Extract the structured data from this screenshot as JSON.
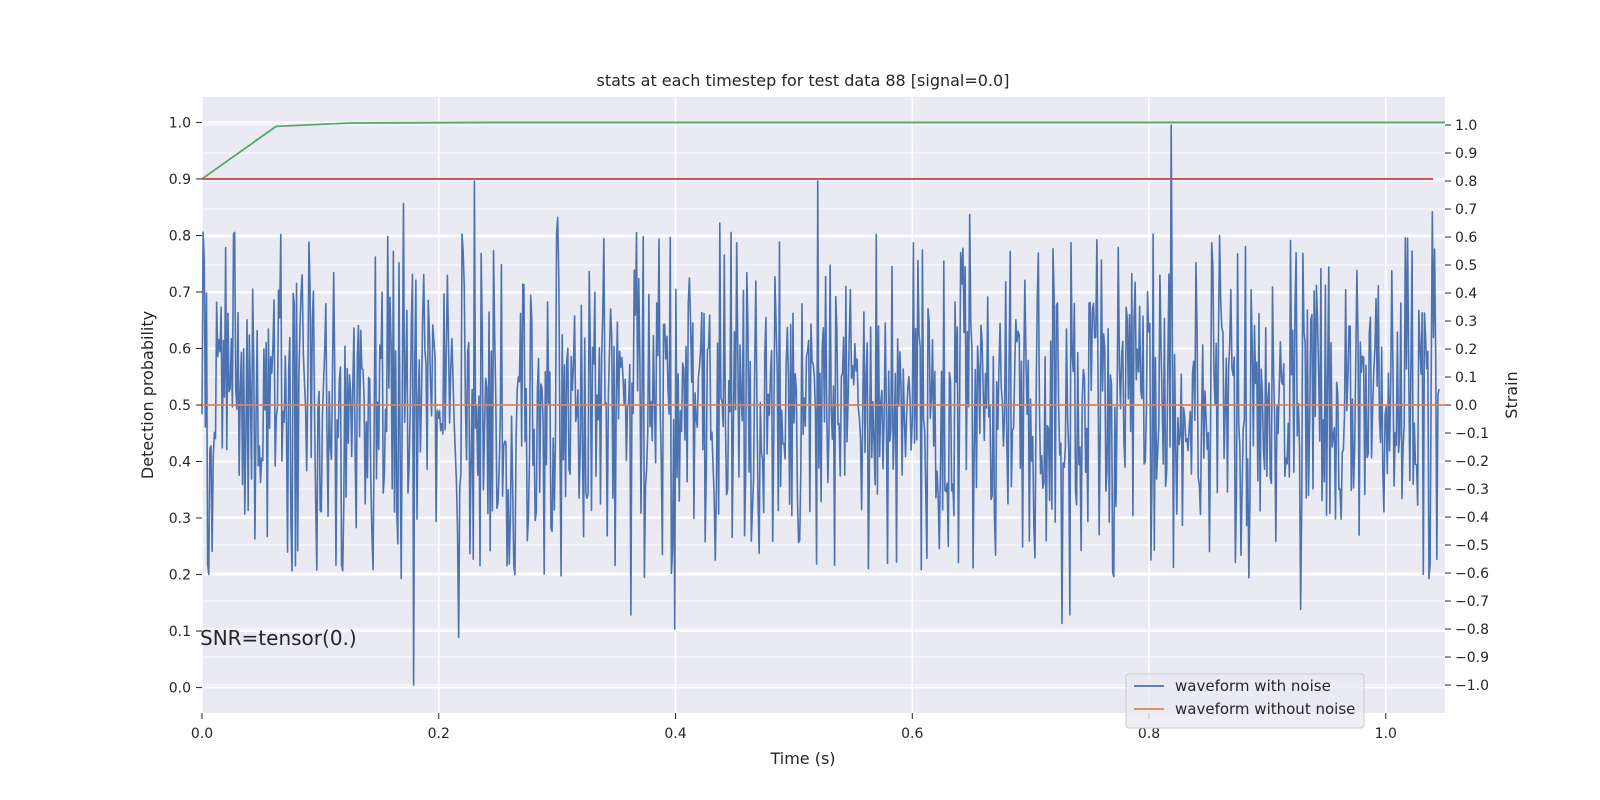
{
  "chart_data": {
    "type": "line",
    "title": "stats at each timestep for test data 88 [signal=0.0]",
    "xlabel": "Time (s)",
    "ylabel_left": "Detection probability",
    "ylabel_right": "Strain",
    "xlim": [
      0.0,
      1.05
    ],
    "ylim_left": [
      -0.045,
      1.045
    ],
    "ylim_right": [
      -1.1,
      1.1
    ],
    "x_ticks": [
      0.0,
      0.2,
      0.4,
      0.6,
      0.8,
      1.0
    ],
    "x_tick_labels": [
      "0.0",
      "0.2",
      "0.4",
      "0.6",
      "0.8",
      "1.0"
    ],
    "left_ticks": [
      0.0,
      0.1,
      0.2,
      0.3,
      0.4,
      0.5,
      0.6,
      0.7,
      0.8,
      0.9,
      1.0
    ],
    "left_tick_labels": [
      "0.0",
      "0.1",
      "0.2",
      "0.3",
      "0.4",
      "0.5",
      "0.6",
      "0.7",
      "0.8",
      "0.9",
      "1.0"
    ],
    "right_ticks": [
      -1.0,
      -0.9,
      -0.8,
      -0.7,
      -0.6,
      -0.5,
      -0.4,
      -0.3,
      -0.2,
      -0.1,
      0.0,
      0.1,
      0.2,
      0.3,
      0.4,
      0.5,
      0.6,
      0.7,
      0.8,
      0.9,
      1.0
    ],
    "right_tick_labels": [
      "−1.0",
      "−0.9",
      "−0.8",
      "−0.7",
      "−0.6",
      "−0.5",
      "−0.4",
      "−0.3",
      "−0.2",
      "−0.1",
      "0.0",
      "0.1",
      "0.2",
      "0.3",
      "0.4",
      "0.5",
      "0.6",
      "0.7",
      "0.8",
      "0.9",
      "1.0"
    ],
    "grid": true,
    "legend_position": "lower-right",
    "annotation": "SNR=tensor(0.)",
    "series": [
      {
        "name": "waveform with noise",
        "axis": "right",
        "color": "#4c72b0",
        "kind": "noise",
        "x_start": 0.0,
        "x_end": 1.045,
        "n_points": 1100,
        "mean": 0.0,
        "std": 0.31,
        "peaks": [
          {
            "x": 0.0015,
            "y": 0.52
          },
          {
            "x": 0.0035,
            "y": 0.4
          },
          {
            "x": 0.1705,
            "y": 0.72
          },
          {
            "x": 0.1785,
            "y": -1.0
          },
          {
            "x": 0.2165,
            "y": -0.83
          },
          {
            "x": 0.2305,
            "y": 0.8
          },
          {
            "x": 0.3005,
            "y": 0.67
          },
          {
            "x": 0.3625,
            "y": -0.75
          },
          {
            "x": 0.3995,
            "y": -0.8
          },
          {
            "x": 0.4375,
            "y": 0.65
          },
          {
            "x": 0.5205,
            "y": 0.8
          },
          {
            "x": 0.6485,
            "y": 0.68
          },
          {
            "x": 0.7265,
            "y": -0.78
          },
          {
            "x": 0.7335,
            "y": -0.75
          },
          {
            "x": 0.8185,
            "y": 1.0
          },
          {
            "x": 0.8205,
            "y": -0.58
          },
          {
            "x": 0.9285,
            "y": -0.73
          },
          {
            "x": 1.0365,
            "y": -0.62
          },
          {
            "x": 1.0395,
            "y": 0.69
          }
        ]
      },
      {
        "name": "waveform without noise",
        "axis": "right",
        "color": "#dd8452",
        "x": [
          0.0,
          1.05
        ],
        "y": [
          0.0,
          0.0
        ]
      },
      {
        "axis": "left",
        "color": "#55a868",
        "x": [
          0.0,
          0.0625,
          0.125,
          0.25,
          0.5,
          0.75,
          1.0,
          1.05
        ],
        "y": [
          0.9,
          0.993,
          0.999,
          1.0,
          1.0,
          1.0,
          1.0,
          1.0
        ]
      },
      {
        "axis": "left",
        "color": "#c44e52",
        "x": [
          0.0,
          1.04
        ],
        "y": [
          0.9,
          0.9
        ]
      }
    ]
  },
  "colors": {
    "plot_background": "#eaeaf2",
    "grid": "#ffffff",
    "text": "#262626"
  }
}
